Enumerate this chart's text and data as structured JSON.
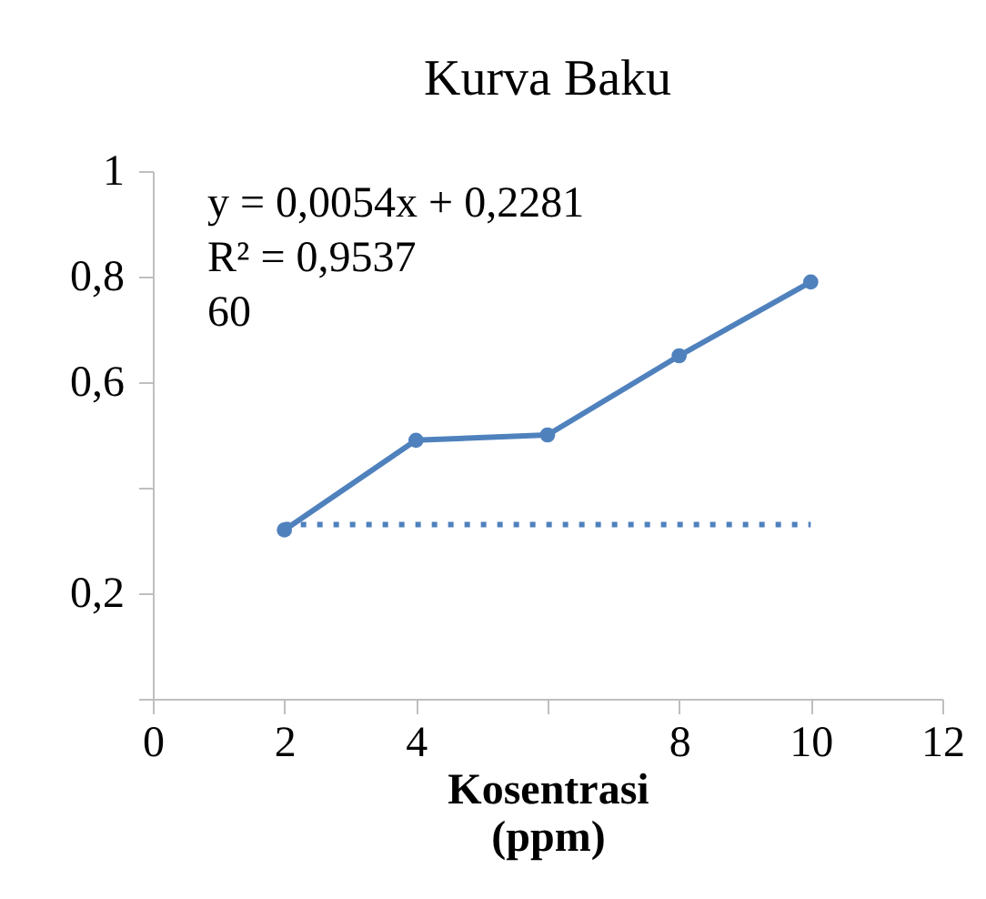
{
  "chart_data": {
    "type": "line",
    "title": "Kurva Baku",
    "xlabel": "Kosentrasi (ppm)",
    "annotations": [
      "y = 0,0054x + 0,2281",
      "R² = 0,9537",
      "60"
    ],
    "x": [
      2,
      4,
      6,
      8,
      10
    ],
    "series": [
      {
        "color": "#4f81bd",
        "values": [
          0.32,
          0.49,
          0.5,
          0.65,
          0.79
        ],
        "marker": "circle",
        "line_style": "solid"
      },
      {
        "type": "line",
        "color": "#4f81bd",
        "x": [
          2,
          10
        ],
        "values": [
          0.33,
          0.33
        ],
        "marker": "none",
        "line_style": "dotted"
      }
    ],
    "xlim": [
      0,
      12
    ],
    "xticks": [
      0,
      2,
      4,
      {
        "value": 6,
        "label": null
      },
      8,
      10,
      12
    ],
    "ylim": [
      0,
      1
    ],
    "yticks": [
      {
        "value": 0,
        "label": null
      },
      {
        "value": 0.2,
        "label": "0,2"
      },
      {
        "value": 0.4,
        "label": null
      },
      {
        "value": 0.6,
        "label": "0,6"
      },
      {
        "value": 0.8,
        "label": "0,8"
      },
      {
        "value": 1,
        "label": "1"
      }
    ],
    "grid": false
  }
}
